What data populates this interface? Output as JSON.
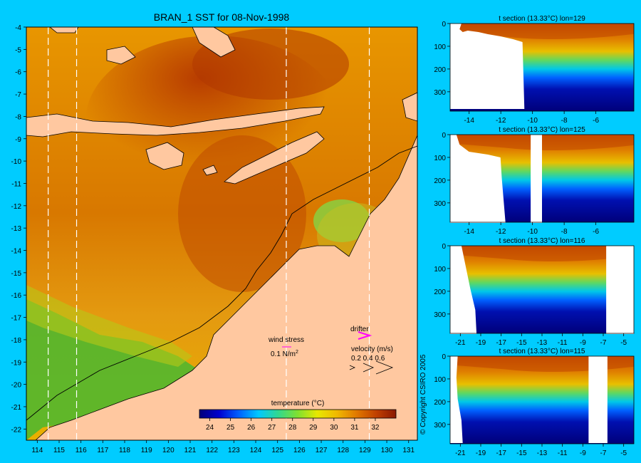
{
  "main_map": {
    "title": "BRAN_1 SST for 08-Nov-1998",
    "x_ticks": [
      "114",
      "115",
      "116",
      "117",
      "118",
      "119",
      "120",
      "121",
      "122",
      "123",
      "124",
      "125",
      "126",
      "127",
      "128",
      "129",
      "130",
      "131"
    ],
    "y_ticks": [
      "-4",
      "-5",
      "-6",
      "-7",
      "-8",
      "-9",
      "-10",
      "-11",
      "-12",
      "-13",
      "-14",
      "-15",
      "-16",
      "-17",
      "-18",
      "-19",
      "-20",
      "-21",
      "-22"
    ],
    "section_longitudes": [
      114.5,
      115.8,
      125.4,
      129.2
    ],
    "colors": {
      "warm": "#d26a00",
      "hot": "#b83c00",
      "mid": "#e8a000",
      "cool_green": "#6ac83a",
      "land": "#ffc8a0",
      "frame_bg": "#00ccff"
    },
    "legend": {
      "wind_stress_label": "wind stress",
      "wind_stress_scale": "0.1 N/m",
      "wind_stress_sup": "2",
      "drifter_label": "drifter",
      "velocity_label": "velocity (m/s)",
      "velocity_scale": "0.2 0.4 0.6"
    },
    "colorbar": {
      "label": "temperature (°C)",
      "ticks": [
        "24",
        "25",
        "26",
        "27",
        "28",
        "29",
        "30",
        "31",
        "32"
      ],
      "range": [
        23.5,
        33
      ],
      "stops": [
        "#00007a",
        "#0000d0",
        "#0060ff",
        "#00c8ff",
        "#30d890",
        "#80e030",
        "#e8e800",
        "#f0b800",
        "#e07800",
        "#c04000",
        "#8a1800"
      ]
    }
  },
  "sections": [
    {
      "title": "t section (13.33°C) lon=129",
      "x_ticks": [
        "-14",
        "-12",
        "-10",
        "-8",
        "-6"
      ],
      "y_ticks": [
        "0",
        "100",
        "200",
        "300"
      ],
      "x_range": [
        -15.2,
        -3.6
      ]
    },
    {
      "title": "t section (13.33°C) lon=125",
      "x_ticks": [
        "-14",
        "-12",
        "-10",
        "-8",
        "-6"
      ],
      "y_ticks": [
        "0",
        "100",
        "200",
        "300"
      ],
      "x_range": [
        -15.2,
        -3.6
      ]
    },
    {
      "title": "t section (13.33°C) lon=116",
      "x_ticks": [
        "-21",
        "-19",
        "-17",
        "-15",
        "-13",
        "-11",
        "-9",
        "-7",
        "-5"
      ],
      "y_ticks": [
        "0",
        "100",
        "200",
        "300"
      ],
      "x_range": [
        -22,
        -4
      ]
    },
    {
      "title": "t section (13.33°C) lon=115",
      "x_ticks": [
        "-21",
        "-19",
        "-17",
        "-15",
        "-13",
        "-11",
        "-9",
        "-7",
        "-5"
      ],
      "y_ticks": [
        "0",
        "100",
        "200",
        "300"
      ],
      "x_range": [
        -22,
        -4
      ]
    }
  ],
  "copyright": "© Copyright CSIRO 2005"
}
